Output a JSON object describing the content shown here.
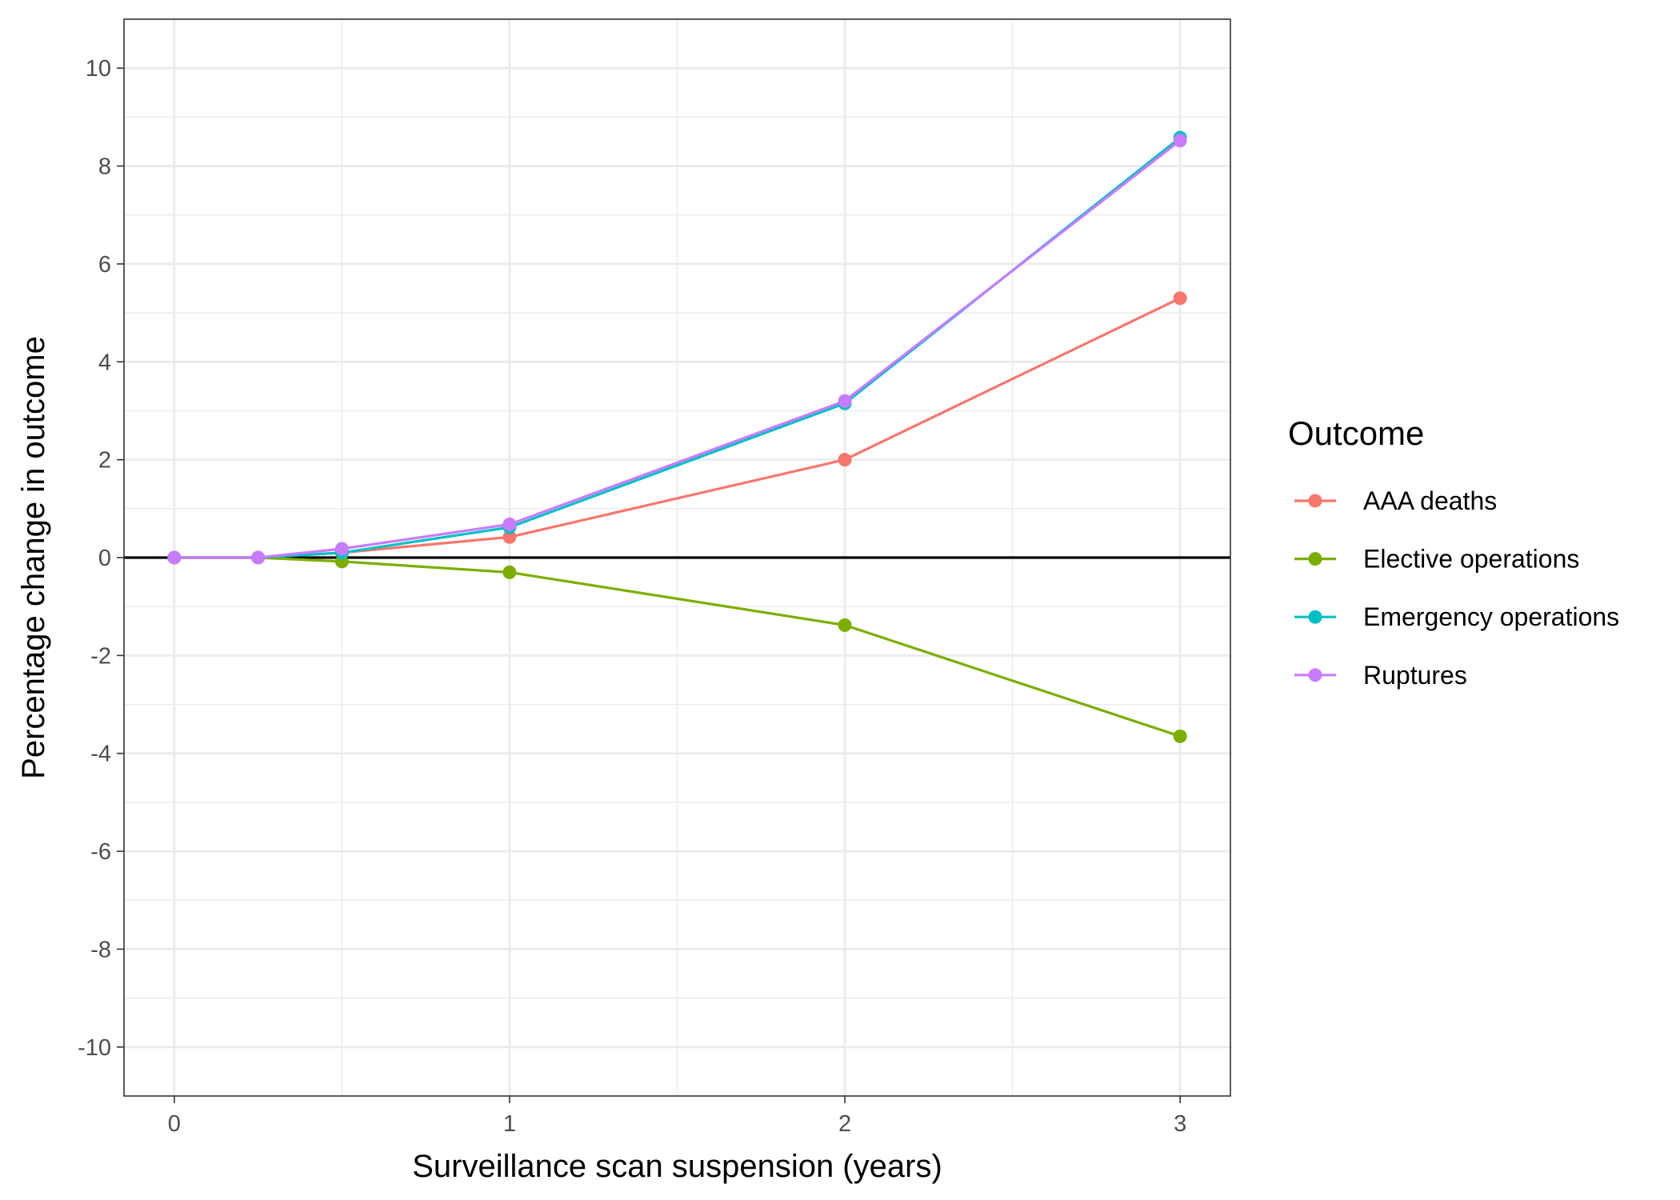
{
  "chart_data": {
    "type": "line",
    "xlabel": "Surveillance scan suspension (years)",
    "ylabel": "Percentage change in outcome",
    "xlim": [
      -0.15,
      3.15
    ],
    "ylim": [
      -11,
      11
    ],
    "x_ticks": [
      0,
      1,
      2,
      3
    ],
    "x_tick_labels": [
      "0",
      "1",
      "2",
      "3"
    ],
    "y_ticks": [
      -10,
      -8,
      -6,
      -4,
      -2,
      0,
      2,
      4,
      6,
      8,
      10
    ],
    "y_tick_labels": [
      "-10",
      "-8",
      "-6",
      "-4",
      "-2",
      "0",
      "2",
      "4",
      "6",
      "8",
      "10"
    ],
    "grid": true,
    "reference_line_y": 0,
    "legend": {
      "title": "Outcome",
      "placement": "right"
    },
    "x": [
      0,
      0.25,
      0.5,
      1,
      2,
      3
    ],
    "series": [
      {
        "name": "AAA deaths",
        "color": "#F8766D",
        "values": [
          0,
          0,
          0.1,
          0.42,
          2.0,
          5.3
        ]
      },
      {
        "name": "Elective operations",
        "color": "#7CAE00",
        "values": [
          0,
          0,
          -0.08,
          -0.3,
          -1.38,
          -3.65
        ]
      },
      {
        "name": "Emergency operations",
        "color": "#00BFC4",
        "values": [
          0,
          0,
          0.1,
          0.62,
          3.15,
          8.58
        ]
      },
      {
        "name": "Ruptures",
        "color": "#C77CFF",
        "values": [
          0,
          0,
          0.18,
          0.68,
          3.2,
          8.52
        ]
      }
    ]
  }
}
